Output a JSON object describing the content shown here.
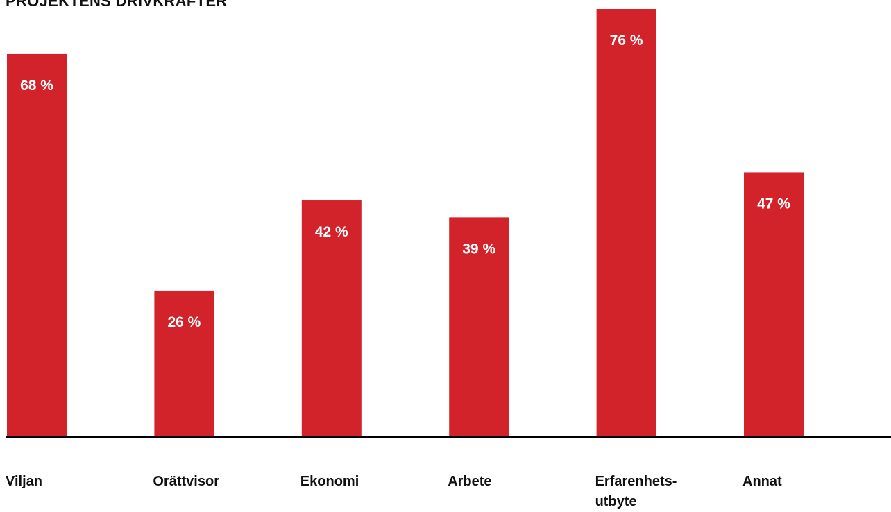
{
  "title": "PROJEKTENS DRIVKRAFTER",
  "colors": {
    "bar": "#d3232a",
    "label": "#ffffff",
    "axis": "#000000"
  },
  "chart_data": {
    "type": "bar",
    "title": "PROJEKTENS DRIVKRAFTER",
    "categories": [
      "Viljan",
      "Orättvisor",
      "Ekonomi",
      "Arbete",
      "Erfarenhets-\nutbyte",
      "Annat"
    ],
    "values": [
      68,
      26,
      42,
      39,
      76,
      47
    ],
    "value_labels": [
      "68 %",
      "26 %",
      "42 %",
      "39 %",
      "76 %",
      "47 %"
    ],
    "unit": "%",
    "xlabel": "",
    "ylabel": "",
    "ylim": [
      0,
      100
    ],
    "grid": false,
    "legend": "none"
  }
}
